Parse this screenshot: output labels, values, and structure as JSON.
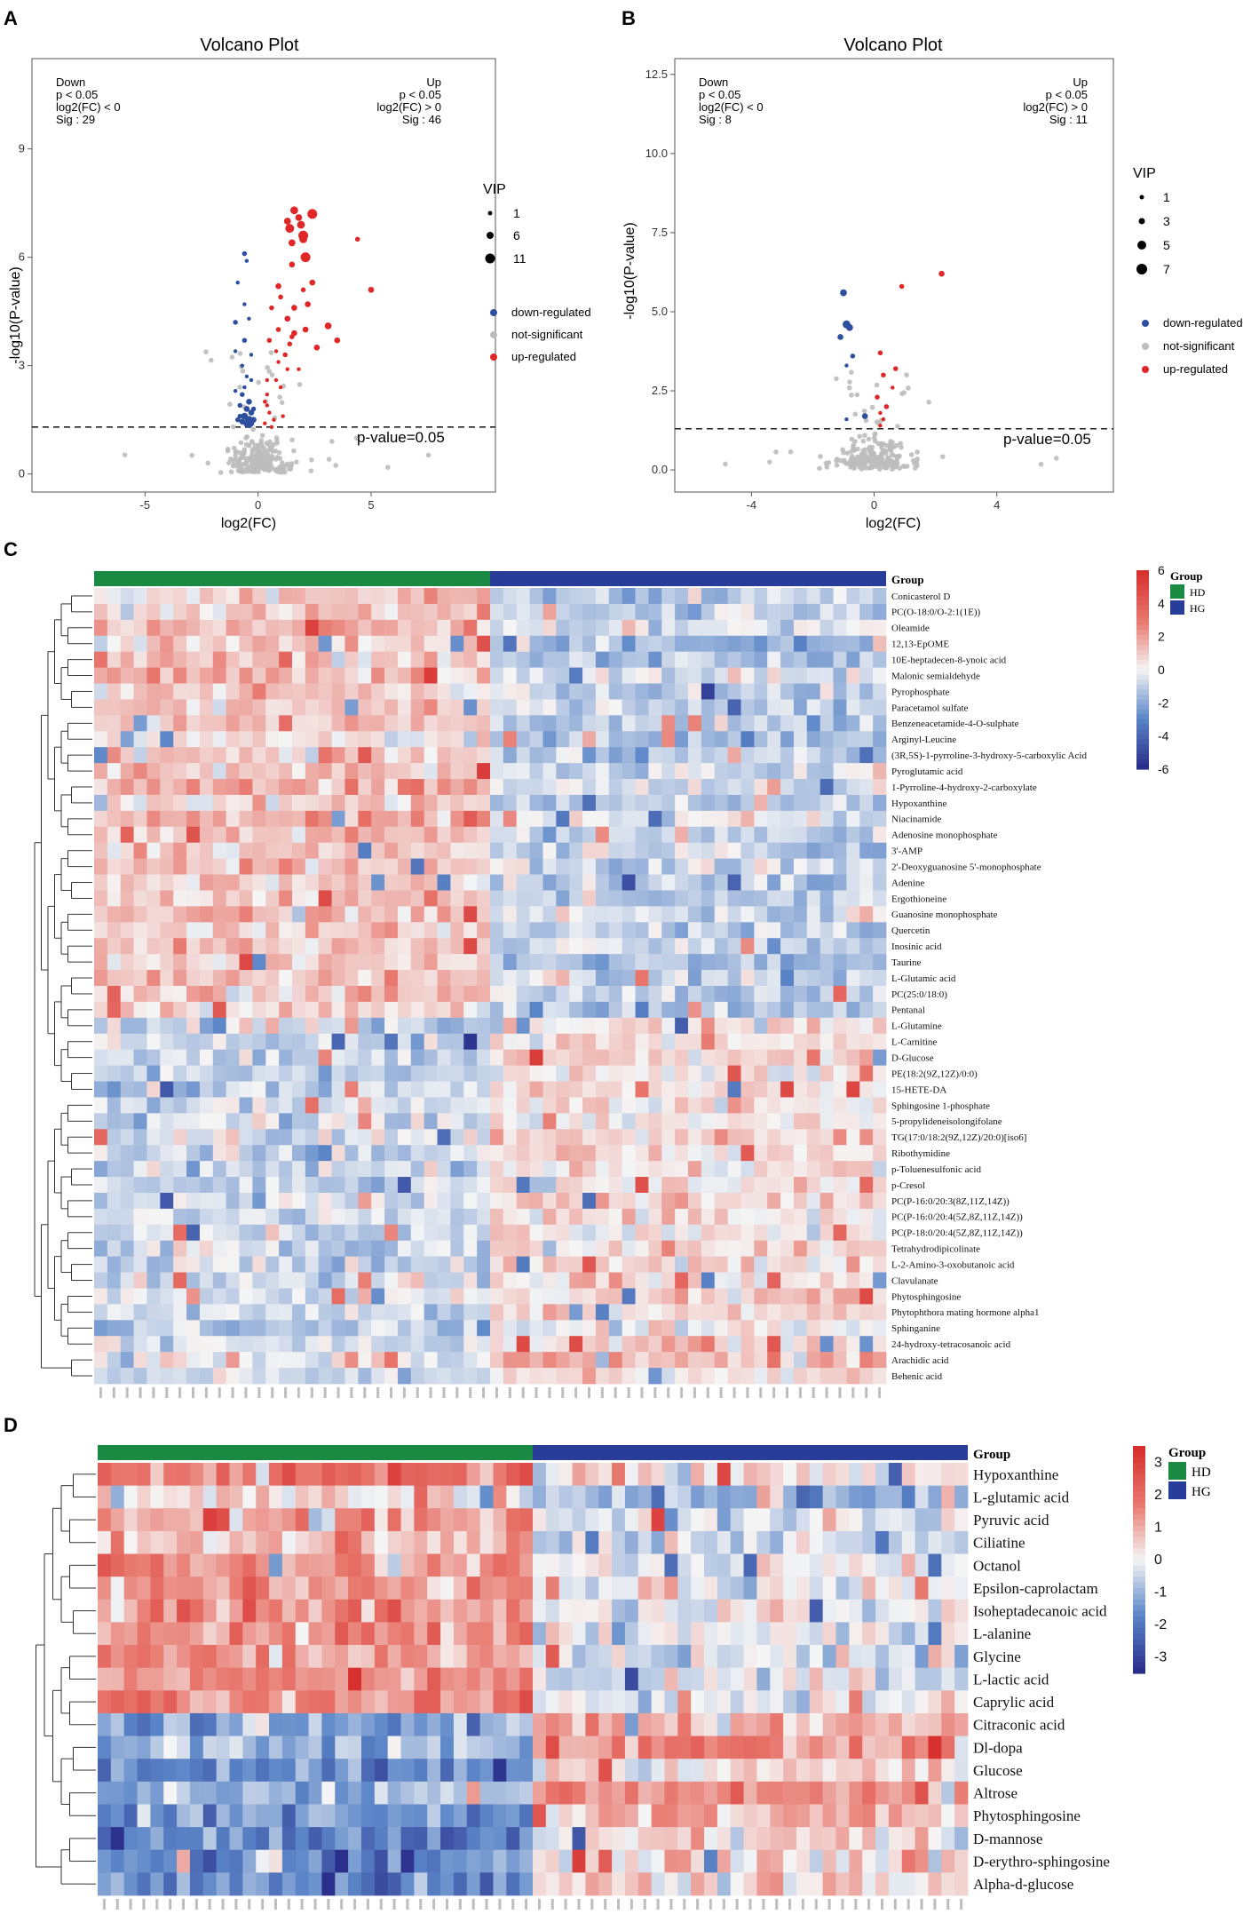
{
  "figure": {
    "panels": [
      {
        "letter": "A",
        "title": "Volcano Plot",
        "down": [
          "Down",
          "p < 0.05",
          "log2(FC) < 0",
          "Sig : 29"
        ],
        "up": [
          "Up",
          "p < 0.05",
          "log2(FC) > 0",
          "Sig : 46"
        ],
        "threshold_label": "p-value=0.05",
        "vip_title": "VIP",
        "vip_sizes": [
          "1",
          "6",
          "11"
        ],
        "legend_items": [
          "down-regulated",
          "not-significant",
          "up-regulated"
        ]
      },
      {
        "letter": "B",
        "title": "Volcano Plot",
        "down": [
          "Down",
          "p < 0.05",
          "log2(FC) < 0",
          "Sig : 8"
        ],
        "up": [
          "Up",
          "p < 0.05",
          "log2(FC) > 0",
          "Sig : 11"
        ],
        "threshold_label": "p-value=0.05",
        "vip_title": "VIP",
        "vip_sizes": [
          "1",
          "3",
          "5",
          "7"
        ],
        "legend_items": [
          "down-regulated",
          "not-significant",
          "up-regulated"
        ]
      },
      {
        "letter": "C",
        "group_header": "Group",
        "legend_title": "Group",
        "groups": [
          "HD",
          "HG"
        ],
        "colorbar_ticks": [
          "6",
          "4",
          "2",
          "0",
          "-2",
          "-4",
          "-6"
        ]
      },
      {
        "letter": "D",
        "group_header": "Group",
        "legend_title": "Group",
        "groups": [
          "HD",
          "HG"
        ],
        "colorbar_ticks": [
          "3",
          "2",
          "1",
          "0",
          "-1",
          "-2",
          "-3"
        ]
      }
    ]
  },
  "colors": {
    "down": "#2e4f9e",
    "up": "#e02626",
    "ns": "#bdbdbd",
    "hd": "#1a8a43",
    "hg": "#283c9a",
    "heat_high": "#d7302f",
    "heat_mid": "#f5f5f5",
    "heat_low": "#2b2f8c"
  },
  "chart_data": [
    {
      "type": "scatter",
      "panel": "A",
      "title": "Volcano Plot",
      "xlabel": "log2(FC)",
      "ylabel": "-log10(P-value)",
      "xlim": [
        -10,
        10.5
      ],
      "ylim": [
        -0.5,
        11.5
      ],
      "xticks": [
        -5,
        0,
        5
      ],
      "yticks": [
        0,
        3,
        6,
        9
      ],
      "threshold_y": 1.3,
      "n_not_significant": 250,
      "series": [
        {
          "name": "up-regulated",
          "points": [
            [
              1.6,
              7.3,
              8
            ],
            [
              1.8,
              7.1,
              7
            ],
            [
              1.4,
              6.8,
              9
            ],
            [
              1.9,
              6.9,
              8
            ],
            [
              2.4,
              7.2,
              10
            ],
            [
              1.3,
              7.0,
              7
            ],
            [
              2.0,
              6.6,
              10
            ],
            [
              2.0,
              6.5,
              8
            ],
            [
              1.5,
              6.4,
              7
            ],
            [
              2.1,
              6.0,
              10
            ],
            [
              1.5,
              5.8,
              6
            ],
            [
              5.0,
              5.1,
              6
            ],
            [
              4.4,
              6.5,
              5
            ],
            [
              0.9,
              5.2,
              6
            ],
            [
              1.0,
              4.9,
              5
            ],
            [
              2.4,
              5.3,
              6
            ],
            [
              2.0,
              5.1,
              5
            ],
            [
              2.2,
              4.7,
              6
            ],
            [
              1.6,
              4.6,
              6
            ],
            [
              1.3,
              4.3,
              6
            ],
            [
              0.9,
              4.0,
              5
            ],
            [
              2.1,
              4.0,
              6
            ],
            [
              3.1,
              4.1,
              7
            ],
            [
              3.5,
              3.7,
              6
            ],
            [
              1.6,
              3.9,
              6
            ],
            [
              1.5,
              3.8,
              5
            ],
            [
              1.4,
              3.6,
              5
            ],
            [
              0.5,
              3.7,
              5
            ],
            [
              2.6,
              3.5,
              6
            ],
            [
              0.8,
              3.4,
              4
            ],
            [
              0.4,
              2.6,
              4
            ],
            [
              1.3,
              2.9,
              4
            ],
            [
              1.0,
              2.4,
              4
            ],
            [
              0.4,
              2.2,
              4
            ],
            [
              0.3,
              2.0,
              4
            ],
            [
              0.4,
              1.9,
              4
            ],
            [
              0.5,
              1.7,
              4
            ],
            [
              0.7,
              1.5,
              4
            ],
            [
              0.3,
              1.4,
              4
            ],
            [
              0.6,
              1.3,
              4
            ],
            [
              1.1,
              1.6,
              4
            ],
            [
              0.8,
              2.6,
              4
            ],
            [
              1.2,
              3.3,
              5
            ],
            [
              0.6,
              4.6,
              5
            ],
            [
              1.8,
              2.9,
              4
            ],
            [
              0.9,
              3.1,
              4
            ]
          ]
        },
        {
          "name": "down-regulated",
          "points": [
            [
              -0.6,
              6.1,
              5
            ],
            [
              -0.5,
              5.9,
              4
            ],
            [
              -0.9,
              5.3,
              4
            ],
            [
              -0.6,
              4.7,
              4
            ],
            [
              -1.0,
              4.2,
              5
            ],
            [
              -0.4,
              4.3,
              4
            ],
            [
              -0.6,
              3.7,
              5
            ],
            [
              -1.0,
              3.4,
              4
            ],
            [
              -0.3,
              3.3,
              4
            ],
            [
              -0.7,
              3.0,
              4
            ],
            [
              -0.5,
              2.7,
              4
            ],
            [
              -0.3,
              2.6,
              4
            ],
            [
              -1.0,
              2.3,
              4
            ],
            [
              -0.7,
              2.2,
              5
            ],
            [
              -0.4,
              2.0,
              6
            ],
            [
              -0.8,
              1.9,
              5
            ],
            [
              -0.5,
              1.8,
              6
            ],
            [
              -0.3,
              1.7,
              6
            ],
            [
              -0.6,
              1.6,
              7
            ],
            [
              -0.4,
              1.5,
              8
            ],
            [
              -0.2,
              1.5,
              6
            ],
            [
              -0.7,
              1.45,
              6
            ],
            [
              -0.5,
              1.4,
              7
            ],
            [
              -0.3,
              1.4,
              6
            ],
            [
              -0.8,
              1.6,
              5
            ],
            [
              -0.9,
              1.5,
              5
            ],
            [
              -0.2,
              1.8,
              5
            ],
            [
              -0.6,
              2.4,
              4
            ],
            [
              -0.4,
              1.35,
              6
            ]
          ]
        }
      ]
    },
    {
      "type": "scatter",
      "panel": "B",
      "title": "Volcano Plot",
      "xlabel": "log2(FC)",
      "ylabel": "-log10(P-value)",
      "xlim": [
        -6.5,
        7.8
      ],
      "ylim": [
        -0.7,
        13.0
      ],
      "xticks": [
        -4,
        0,
        4
      ],
      "yticks": [
        0,
        2.5,
        5,
        7.5,
        10,
        12.5
      ],
      "ytick_labels": [
        "0.0",
        "2.5",
        "5.0",
        "7.5",
        "10.0",
        "12.5"
      ],
      "threshold_y": 1.3,
      "n_not_significant": 230,
      "series": [
        {
          "name": "up-regulated",
          "points": [
            [
              2.2,
              6.2,
              6
            ],
            [
              0.9,
              5.8,
              5
            ],
            [
              0.2,
              3.7,
              5
            ],
            [
              0.7,
              3.2,
              5
            ],
            [
              0.3,
              3.0,
              5
            ],
            [
              0.1,
              2.3,
              5
            ],
            [
              0.4,
              2.0,
              5
            ],
            [
              0.2,
              1.8,
              4
            ],
            [
              0.6,
              2.6,
              4
            ],
            [
              0.3,
              1.6,
              4
            ],
            [
              0.2,
              1.4,
              4
            ]
          ]
        },
        {
          "name": "down-regulated",
          "points": [
            [
              -1.0,
              5.6,
              7
            ],
            [
              -0.9,
              4.6,
              8
            ],
            [
              -0.8,
              4.5,
              7
            ],
            [
              -1.1,
              4.2,
              6
            ],
            [
              -0.7,
              3.6,
              5
            ],
            [
              -0.9,
              3.3,
              4
            ],
            [
              -0.3,
              1.7,
              6
            ],
            [
              -0.9,
              1.6,
              4
            ]
          ]
        }
      ]
    },
    {
      "type": "heatmap",
      "panel": "C",
      "value_range": [
        -6,
        6
      ],
      "groups": {
        "HD": 30,
        "HG": 30
      },
      "rows": [
        "Conicasterol D",
        "PC(O-18:0/O-2:1(1E))",
        "Oleamide",
        "12,13-EpOME",
        "10E-heptadecen-8-ynoic acid",
        "Malonic semialdehyde",
        "Pyrophosphate",
        "Paracetamol sulfate",
        "Benzeneacetamide-4-O-sulphate",
        "Arginyl-Leucine",
        "(3R,5S)-1-pyrroline-3-hydroxy-5-carboxylic Acid",
        "Pyroglutamic acid",
        "1-Pyrroline-4-hydroxy-2-carboxylate",
        "Hypoxanthine",
        "Niacinamide",
        "Adenosine monophosphate",
        "3'-AMP",
        "2'-Deoxyguanosine 5'-monophosphate",
        "Adenine",
        "Ergothioneine",
        "Guanosine monophosphate",
        "Quercetin",
        "Inosinic acid",
        "Taurine",
        "L-Glutamic acid",
        "PC(25:0/18:0)",
        "Pentanal",
        "L-Glutamine",
        "L-Carnitine",
        "D-Glucose",
        "PE(18:2(9Z,12Z)/0:0)",
        "15-HETE-DA",
        "Sphingosine 1-phosphate",
        "5-propylideneisolongifolane",
        "TG(17:0/18:2(9Z,12Z)/20:0)[iso6]",
        "Ribothymidine",
        "p-Toluenesulfonic acid",
        "p-Cresol",
        "PC(P-16:0/20:3(8Z,11Z,14Z))",
        "PC(P-16:0/20:4(5Z,8Z,11Z,14Z))",
        "PC(P-18:0/20:4(5Z,8Z,11Z,14Z))",
        "Tetrahydrodipicolinate",
        "L-2-Amino-3-oxobutanoic acid",
        "Clavulanate",
        "Phytosphingosine",
        "Phytophthora mating hormone alpha1",
        "Sphinganine",
        "24-hydroxy-tetracosanoic acid",
        "Arachidic acid",
        "Behenic acid"
      ],
      "row_group_means": {
        "HD_rows_0_26": 1.2,
        "HG_rows_0_26": -0.9,
        "HD_rows_27_49": -0.8,
        "HG_rows_27_49": 0.6
      }
    },
    {
      "type": "heatmap",
      "panel": "D",
      "value_range": [
        -3.5,
        3.5
      ],
      "groups": {
        "HD": 33,
        "HG": 33
      },
      "rows": [
        "Hypoxanthine",
        "L-glutamic acid",
        "Pyruvic acid",
        "Ciliatine",
        "Octanol",
        "Epsilon-caprolactam",
        "Isoheptadecanoic acid",
        "L-alanine",
        "Glycine",
        "L-lactic acid",
        "Caprylic acid",
        "Citraconic acid",
        "Dl-dopa",
        "Glucose",
        "Altrose",
        "Phytosphingosine",
        "D-mannose",
        "D-erythro-sphingosine",
        "Alpha-d-glucose"
      ],
      "row_group_means": {
        "HD_rows_0_10": 1.0,
        "HG_rows_0_10": -0.5,
        "HD_rows_11_18": -1.4,
        "HG_rows_11_18": 0.8
      }
    }
  ]
}
